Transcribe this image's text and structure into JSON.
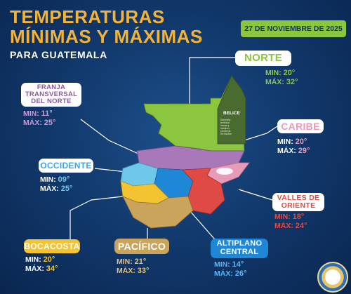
{
  "title": {
    "line1": "TEMPERATURAS",
    "line2": "MÍNIMAS Y MÁXIMAS",
    "subtitle": "PARA GUATEMALA"
  },
  "date": "27 DE NOVIEMBRE DE 2025",
  "colors": {
    "title": "#f5b335",
    "norte": "#8cc63f",
    "caribe": "#e89ab8",
    "valles_oriente": "#e04a44",
    "altiplano_central": "#1e88d6",
    "pacifico": "#c9a45a",
    "bocacosta": "#f4c430",
    "occidente": "#6fc7ea",
    "franja": "#a878b8"
  },
  "regions": [
    {
      "id": "norte",
      "name": "NORTE",
      "min_label": "MIN:",
      "min": "20°",
      "max_label": "MÁX:",
      "max": "32°"
    },
    {
      "id": "caribe",
      "name": "CARIBE",
      "min_label": "MIN:",
      "min": "20°",
      "max_label": "MÁX:",
      "max": "29°"
    },
    {
      "id": "valles",
      "name": "VALLES DE ORIENTE",
      "min_label": "MIN:",
      "min": "18°",
      "max_label": "MÁX:",
      "max": "24°"
    },
    {
      "id": "altiplano",
      "name": "ALTIPLANO CENTRAL",
      "min_label": "MIN:",
      "min": "14°",
      "max_label": "MÁX:",
      "max": "26°"
    },
    {
      "id": "pacifico",
      "name": "PACÍFICO",
      "min_label": "MIN:",
      "min": "21°",
      "max_label": "MÁX:",
      "max": "33°"
    },
    {
      "id": "bocacosta",
      "name": "BOCACOSTA",
      "min_label": "MIN:",
      "min": "20°",
      "max_label": "MÁX:",
      "max": "34°"
    },
    {
      "id": "occidente",
      "name": "OCCIDENTE",
      "min_label": "MIN:",
      "min": "09°",
      "max_label": "MÁX:",
      "max": "25°"
    },
    {
      "id": "franja",
      "name": "FRANJA TRANSVERSAL DEL NORTE",
      "min_label": "MIN:",
      "min": "11°",
      "max_label": "MÁX:",
      "max": "25°"
    }
  ],
  "belice": {
    "label": "BELICE",
    "note": "Diferendo territorial insular y marítimo pendiente de resolver"
  },
  "seal": {
    "text": "INSIVUMEH"
  }
}
